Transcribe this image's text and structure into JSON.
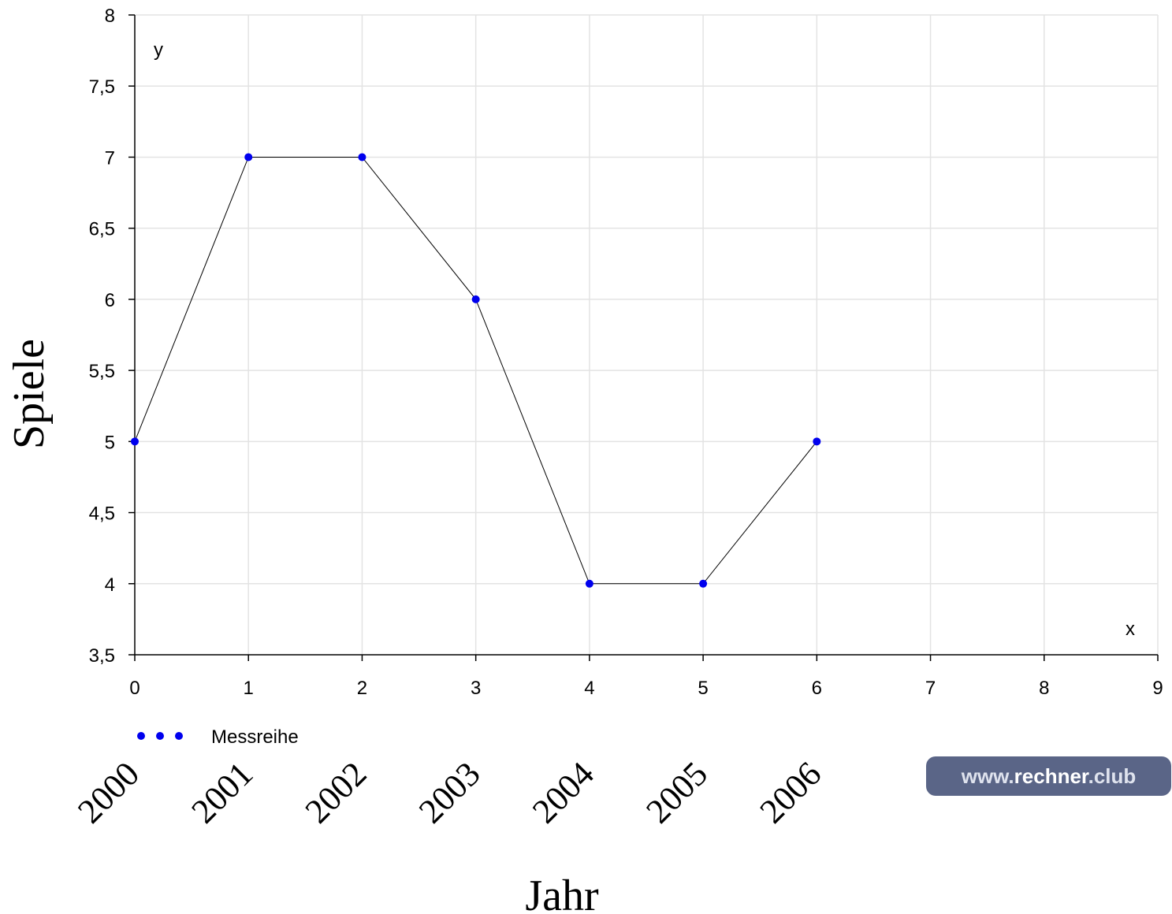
{
  "chart_data": {
    "type": "line",
    "x": [
      0,
      1,
      2,
      3,
      4,
      5,
      6
    ],
    "series": [
      {
        "name": "Messreihe",
        "values": [
          5,
          7,
          7,
          6,
          4,
          4,
          5
        ],
        "color": "#0000ee",
        "line_color": "#000000"
      }
    ],
    "xlim": [
      0,
      9
    ],
    "ylim": [
      3.5,
      8
    ],
    "x_ticks": [
      "0",
      "1",
      "2",
      "3",
      "4",
      "5",
      "6",
      "7",
      "8",
      "9"
    ],
    "y_ticks": [
      "3,5",
      "4",
      "4,5",
      "5",
      "5,5",
      "6",
      "6,5",
      "7",
      "7,5",
      "8"
    ],
    "x_corner_label": "x",
    "y_corner_label": "y",
    "category_labels": [
      "2000",
      "2001",
      "2002",
      "2003",
      "2004",
      "2005",
      "2006"
    ],
    "xlabel": "Jahr",
    "ylabel": "Spiele",
    "grid": true,
    "legend_position": "bottom-left"
  },
  "watermark": {
    "prefix": "www.",
    "main": "rechner",
    "suffix": ".club"
  }
}
